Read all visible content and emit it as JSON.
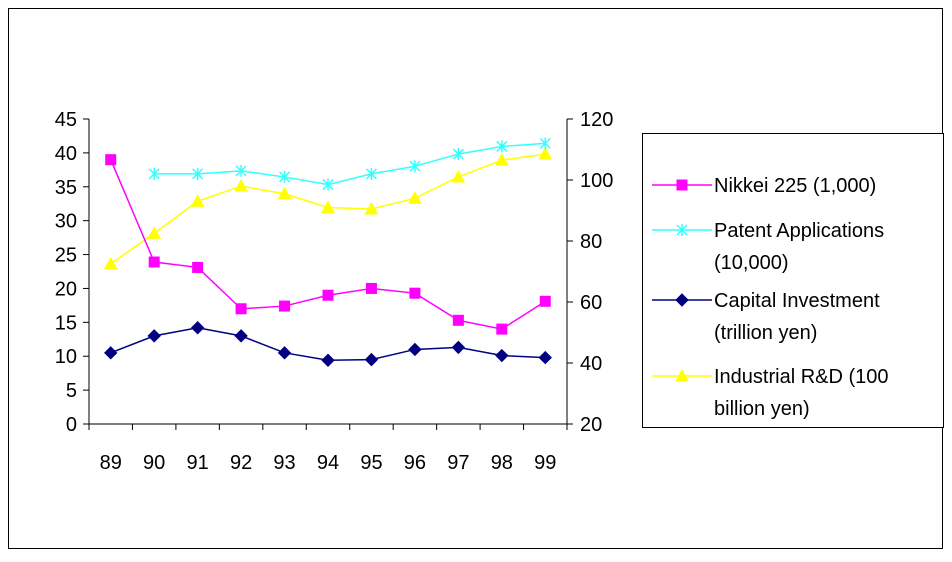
{
  "chart_data": {
    "type": "line",
    "categories": [
      "89",
      "90",
      "91",
      "92",
      "93",
      "94",
      "95",
      "96",
      "97",
      "98",
      "99"
    ],
    "y_left": {
      "ylim": [
        0,
        45
      ],
      "ticks": [
        0,
        5,
        10,
        15,
        20,
        25,
        30,
        35,
        40,
        45
      ]
    },
    "y_right": {
      "ylim": [
        20,
        120
      ],
      "ticks": [
        20,
        40,
        60,
        80,
        100,
        120
      ]
    },
    "grid": false,
    "legend_position": "right",
    "series": [
      {
        "name": "Nikkei 225 (1,000)",
        "legend_lines": [
          "Nikkei 225 (1,000)"
        ],
        "axis": "left",
        "color": "#ff00ff",
        "marker": "square",
        "values": [
          39,
          23.9,
          23.1,
          17,
          17.4,
          19,
          20,
          19.3,
          15.3,
          14,
          18.1
        ]
      },
      {
        "name": "Patent Applications (10,000)",
        "legend_lines": [
          "Patent Applications",
          "(10,000)"
        ],
        "axis": "right",
        "color": "#33ffff",
        "marker": "x",
        "values": [
          null,
          102,
          102,
          103,
          101,
          98.5,
          102,
          104.5,
          108.5,
          111,
          112
        ]
      },
      {
        "name": "Capital Investment (trillion yen)",
        "legend_lines": [
          "Capital Investment",
          "(trillion yen)"
        ],
        "axis": "left",
        "color": "#000080",
        "marker": "diamond",
        "values": [
          10.5,
          13,
          14.2,
          13,
          10.5,
          9.4,
          9.5,
          11,
          11.3,
          10.1,
          9.8
        ]
      },
      {
        "name": "Industrial R&D (100 billion yen)",
        "legend_lines": [
          "Industrial R&D (100",
          "billion yen)"
        ],
        "axis": "right",
        "color": "#ffff00",
        "marker": "triangle",
        "values": [
          72.5,
          82.5,
          93,
          98,
          95.5,
          91,
          90.5,
          94,
          101,
          106.5,
          108.5
        ]
      }
    ]
  }
}
